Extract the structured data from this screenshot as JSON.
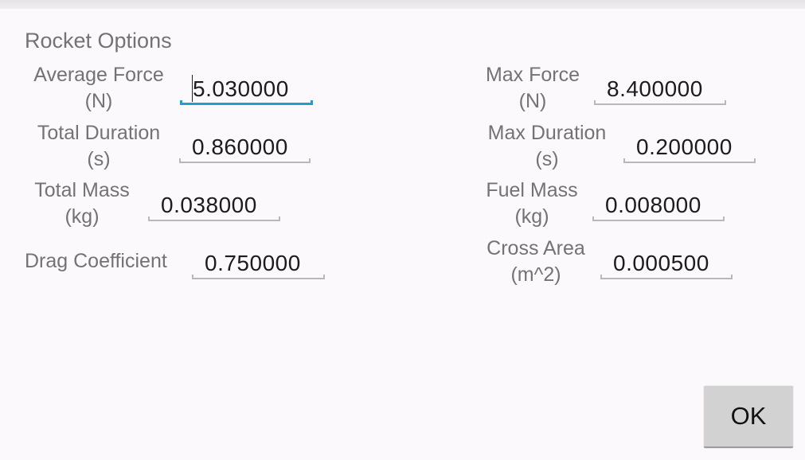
{
  "dialog": {
    "title": "Rocket Options",
    "fields": [
      {
        "label1": "Average Force",
        "label2": "(N)",
        "value": "5.030000",
        "focused": true
      },
      {
        "label1": "Total Duration",
        "label2": "(s)",
        "value": "0.860000"
      },
      {
        "label1": "Total Mass",
        "label2": "(kg)",
        "value": "0.038000"
      },
      {
        "label1": "Drag Coefficient",
        "value": "0.750000"
      },
      {
        "label1": "Max Force",
        "label2": "(N)",
        "value": "8.400000"
      },
      {
        "label1": "Max Duration",
        "label2": "(s)",
        "value": "0.200000"
      },
      {
        "label1": "Fuel Mass",
        "label2": "(kg)",
        "value": "0.008000"
      },
      {
        "label1": "Cross Area",
        "label2": "(m^2)",
        "value": "0.000500"
      }
    ],
    "ok_label": "OK",
    "accent_color": "#1e9fd0"
  }
}
